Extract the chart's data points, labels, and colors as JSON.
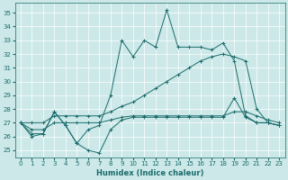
{
  "xlabel": "Humidex (Indice chaleur)",
  "bg_color": "#cce8e8",
  "grid_color": "#ffffff",
  "line_color": "#1a6b6b",
  "xlim": [
    -0.5,
    23.5
  ],
  "ylim": [
    24.5,
    35.7
  ],
  "yticks": [
    25,
    26,
    27,
    28,
    29,
    30,
    31,
    32,
    33,
    34,
    35
  ],
  "xticks": [
    0,
    1,
    2,
    3,
    4,
    5,
    6,
    7,
    8,
    9,
    10,
    11,
    12,
    13,
    14,
    15,
    16,
    17,
    18,
    19,
    20,
    21,
    22,
    23
  ],
  "s1": [
    27.0,
    26.0,
    26.2,
    27.8,
    26.8,
    25.5,
    25.0,
    24.8,
    26.5,
    27.2,
    27.4,
    27.4,
    27.4,
    27.4,
    27.4,
    27.4,
    27.4,
    27.4,
    27.4,
    28.8,
    27.4,
    27.0,
    27.0,
    26.8
  ],
  "s2": [
    27.0,
    26.2,
    26.2,
    27.8,
    26.8,
    25.5,
    26.5,
    26.8,
    29.0,
    33.0,
    31.8,
    33.0,
    32.5,
    35.2,
    32.5,
    32.5,
    32.5,
    32.3,
    32.8,
    31.5,
    27.5,
    27.0,
    27.0,
    26.8
  ],
  "s3": [
    27.0,
    27.0,
    27.0,
    27.5,
    27.5,
    27.5,
    27.5,
    27.5,
    27.8,
    28.2,
    28.5,
    29.0,
    29.5,
    30.0,
    30.5,
    31.0,
    31.5,
    31.8,
    32.0,
    31.8,
    31.5,
    28.0,
    27.0,
    26.8
  ],
  "s4": [
    27.0,
    26.5,
    26.5,
    27.0,
    27.0,
    27.0,
    27.0,
    27.0,
    27.2,
    27.4,
    27.5,
    27.5,
    27.5,
    27.5,
    27.5,
    27.5,
    27.5,
    27.5,
    27.5,
    27.8,
    27.8,
    27.5,
    27.2,
    27.0
  ]
}
